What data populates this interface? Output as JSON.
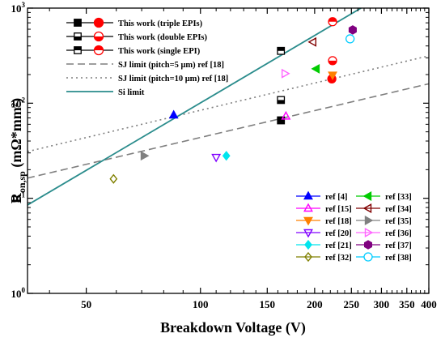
{
  "chart_data": {
    "type": "scatter",
    "title": "",
    "xlabel": "Breakdown Voltage (V)",
    "ylabel_main": "R",
    "ylabel_sub": "on,sp",
    "ylabel_rest": " (mΩ*mm²)",
    "x_scale": "log",
    "y_scale": "log",
    "xlim": [
      35,
      400
    ],
    "ylim": [
      1,
      1000
    ],
    "x_tick_labels": [
      {
        "v": 50,
        "t": "50"
      },
      {
        "v": 100,
        "t": "100"
      },
      {
        "v": 150,
        "t": "150"
      },
      {
        "v": 200,
        "t": "200"
      },
      {
        "v": 250,
        "t": "250"
      },
      {
        "v": 300,
        "t": "300"
      },
      {
        "v": 350,
        "t": "350"
      },
      {
        "v": 400,
        "t": "400"
      }
    ],
    "y_tick_labels": [
      {
        "e": 0,
        "t": "10",
        "sup": "0"
      },
      {
        "e": 1,
        "t": "10",
        "sup": "1"
      },
      {
        "e": 2,
        "t": "10",
        "sup": "2"
      },
      {
        "e": 3,
        "t": "10",
        "sup": "3"
      }
    ],
    "lines": [
      {
        "name": "SJ limit (pitch=5 μm) ref [18]",
        "style": "dashed",
        "color": "#7f7f7f",
        "points": [
          [
            35,
            16.3
          ],
          [
            400,
            160
          ]
        ]
      },
      {
        "name": "SJ limit (pitch=10 μm) ref [18]",
        "style": "dotted",
        "color": "#7f7f7f",
        "points": [
          [
            35,
            31
          ],
          [
            400,
            315
          ]
        ]
      },
      {
        "name": "Si limit",
        "style": "solid",
        "color": "#2a8c8c",
        "points": [
          [
            35,
            8.5
          ],
          [
            265,
            1000
          ]
        ]
      }
    ],
    "series": [
      {
        "name": "This work (triple EPIs)",
        "marker": "square",
        "fill": "full",
        "color": "#000000",
        "points": [
          [
            163,
            66
          ]
        ]
      },
      {
        "name": "This work (double EPIs)",
        "marker": "square",
        "fill": "bottom",
        "color": "#000000",
        "points": [
          [
            163,
            108
          ]
        ]
      },
      {
        "name": "This work (single EPI)",
        "marker": "square",
        "fill": "top",
        "color": "#000000",
        "points": [
          [
            163,
            355
          ]
        ]
      },
      {
        "name": "This work (triple EPIs)",
        "marker": "circle",
        "fill": "full",
        "color": "#ff0000",
        "points": [
          [
            222,
            180
          ]
        ]
      },
      {
        "name": "This work (double EPIs)",
        "marker": "circle",
        "fill": "bottom",
        "color": "#ff0000",
        "points": [
          [
            223,
            280
          ]
        ]
      },
      {
        "name": "This work (single EPI)",
        "marker": "circle",
        "fill": "top",
        "color": "#ff0000",
        "points": [
          [
            223,
            720
          ]
        ]
      },
      {
        "name": "ref [4]",
        "marker": "triangle-up",
        "fill": "full",
        "color": "#0000ff",
        "points": [
          [
            85,
            75
          ]
        ]
      },
      {
        "name": "ref [15]",
        "marker": "triangle-up",
        "fill": "none",
        "color": "#ff00ff",
        "points": [
          [
            168,
            73
          ]
        ]
      },
      {
        "name": "ref [18]",
        "marker": "triangle-down",
        "fill": "full",
        "color": "#ff8000",
        "points": [
          [
            223,
            198
          ]
        ]
      },
      {
        "name": "ref [20]",
        "marker": "triangle-down",
        "fill": "none",
        "color": "#8000ff",
        "points": [
          [
            110,
            27
          ]
        ]
      },
      {
        "name": "ref [21]",
        "marker": "diamond",
        "fill": "full",
        "color": "#00e5ee",
        "points": [
          [
            117,
            28
          ]
        ]
      },
      {
        "name": "ref [32]",
        "marker": "diamond",
        "fill": "none",
        "color": "#808000",
        "points": [
          [
            59,
            16
          ]
        ]
      },
      {
        "name": "ref [33]",
        "marker": "triangle-left",
        "fill": "full",
        "color": "#00cc00",
        "points": [
          [
            202,
            230
          ]
        ]
      },
      {
        "name": "ref [34]",
        "marker": "triangle-left",
        "fill": "none",
        "color": "#800000",
        "points": [
          [
            198,
            440
          ]
        ]
      },
      {
        "name": "ref [35]",
        "marker": "triangle-right",
        "fill": "full",
        "color": "#808080",
        "points": [
          [
            71,
            28
          ]
        ]
      },
      {
        "name": "ref [36]",
        "marker": "triangle-right",
        "fill": "none",
        "color": "#ff66ff",
        "points": [
          [
            167,
            205
          ]
        ]
      },
      {
        "name": "ref [37]",
        "marker": "hexagon",
        "fill": "full",
        "color": "#800080",
        "points": [
          [
            252,
            590
          ]
        ]
      },
      {
        "name": "ref [38]",
        "marker": "circle",
        "fill": "none",
        "color": "#00ccff",
        "points": [
          [
            248,
            475
          ]
        ]
      }
    ],
    "legend_top": [
      {
        "label": "This work (triple EPIs)",
        "kind": "markers",
        "fill": "full"
      },
      {
        "label": "This work (double EPIs)",
        "kind": "markers",
        "fill": "bottom"
      },
      {
        "label": "This work (single EPI)",
        "kind": "markers",
        "fill": "top"
      },
      {
        "label": "SJ limit (pitch=5 μm) ref [18]",
        "kind": "line",
        "line": 0
      },
      {
        "label": "SJ limit (pitch=10 μm) ref [18]",
        "kind": "line",
        "line": 1
      },
      {
        "label": "Si limit",
        "kind": "line",
        "line": 2
      }
    ],
    "legend_refs": [
      {
        "label": "ref [4]",
        "s": 6
      },
      {
        "label": "ref [33]",
        "s": 12
      },
      {
        "label": "ref [15]",
        "s": 7
      },
      {
        "label": "ref [34]",
        "s": 13
      },
      {
        "label": "ref [18]",
        "s": 8
      },
      {
        "label": "ref [35]",
        "s": 14
      },
      {
        "label": "ref [20]",
        "s": 9
      },
      {
        "label": "ref [36]",
        "s": 15
      },
      {
        "label": "ref [21]",
        "s": 10
      },
      {
        "label": "ref [37]",
        "s": 16
      },
      {
        "label": "ref [32]",
        "s": 11
      },
      {
        "label": "ref [38]",
        "s": 17
      }
    ],
    "legend_placement": [
      "top-left",
      "bottom-right"
    ],
    "grid": false
  }
}
